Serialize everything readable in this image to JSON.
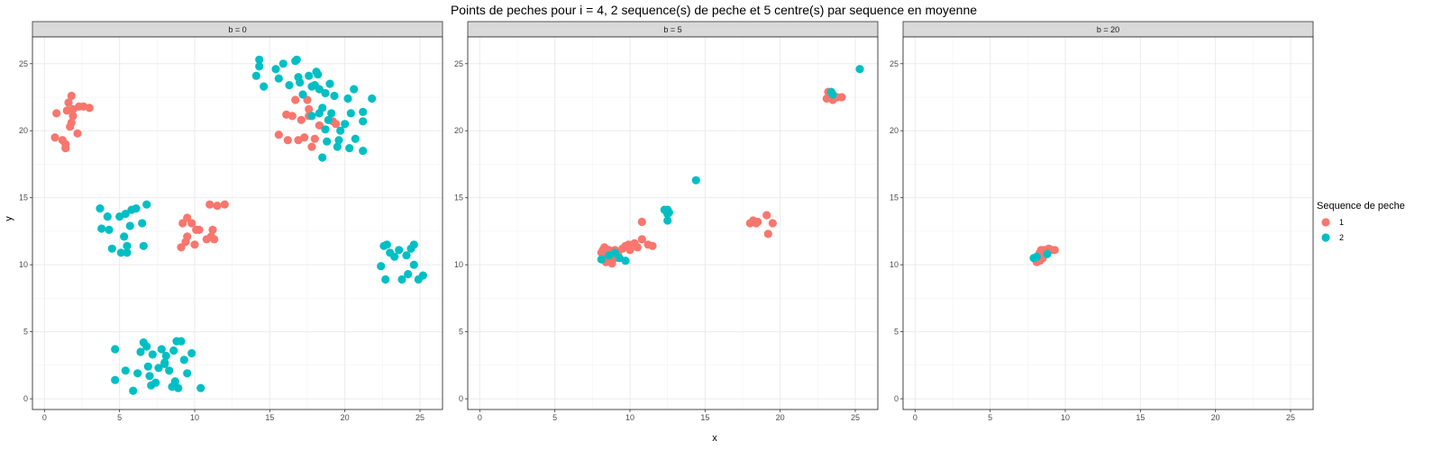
{
  "chart_data": {
    "type": "scatter",
    "title": "Points de peches pour i = 4, 2 sequence(s) de peche et 5 centre(s) par sequence en moyenne",
    "xlabel": "x",
    "ylabel": "y",
    "xlim": [
      -0.8,
      26.5
    ],
    "ylim": [
      -0.8,
      27
    ],
    "xticks": [
      0,
      5,
      10,
      15,
      20,
      25
    ],
    "yticks": [
      0,
      5,
      10,
      15,
      20,
      25
    ],
    "grid": true,
    "legend": {
      "title": "Sequence de peche",
      "placement": "right",
      "entries": [
        {
          "label": "1",
          "color": "#F8766D"
        },
        {
          "label": "2",
          "color": "#00BFC4"
        }
      ]
    },
    "panels": [
      {
        "strip": "b = 0",
        "series": [
          {
            "name": "1",
            "color": "#F8766D",
            "points": [
              [
                0.7,
                19.5
              ],
              [
                0.8,
                21.3
              ],
              [
                1.2,
                19.3
              ],
              [
                1.4,
                19
              ],
              [
                1.4,
                18.7
              ],
              [
                1.5,
                21.5
              ],
              [
                1.6,
                22.1
              ],
              [
                1.7,
                20.3
              ],
              [
                1.8,
                20.6
              ],
              [
                1.8,
                22.6
              ],
              [
                1.9,
                21.1
              ],
              [
                1.9,
                21.6
              ],
              [
                2.2,
                19.8
              ],
              [
                2.3,
                21.8
              ],
              [
                2.6,
                21.8
              ],
              [
                3,
                21.7
              ],
              [
                9.1,
                11.3
              ],
              [
                9.2,
                13.1
              ],
              [
                9.4,
                11.7
              ],
              [
                9.5,
                12.1
              ],
              [
                9.5,
                13.5
              ],
              [
                9.8,
                13.1
              ],
              [
                10,
                11.5
              ],
              [
                10.1,
                12.6
              ],
              [
                10.3,
                12.6
              ],
              [
                10.8,
                11.9
              ],
              [
                11,
                14.5
              ],
              [
                11.1,
                12.1
              ],
              [
                11.2,
                12.6
              ],
              [
                11.3,
                11.9
              ],
              [
                11.5,
                14.4
              ],
              [
                12,
                14.5
              ],
              [
                15.6,
                19.7
              ],
              [
                16.1,
                21.2
              ],
              [
                16.2,
                19.3
              ],
              [
                16.5,
                21.1
              ],
              [
                16.7,
                22.3
              ],
              [
                16.9,
                19.3
              ],
              [
                17.1,
                20.8
              ],
              [
                17.3,
                19.5
              ],
              [
                17.5,
                22.3
              ],
              [
                17.6,
                21.1
              ],
              [
                17.8,
                18.8
              ],
              [
                18,
                19.4
              ],
              [
                18.3,
                20.4
              ],
              [
                19.2,
                20.7
              ],
              [
                19.4,
                20.5
              ],
              [
                17.6,
                21.6
              ]
            ]
          },
          {
            "name": "2",
            "color": "#00BFC4",
            "points": [
              [
                3.7,
                14.2
              ],
              [
                3.8,
                12.7
              ],
              [
                4.2,
                13.6
              ],
              [
                4.3,
                12.6
              ],
              [
                4.5,
                11.2
              ],
              [
                5,
                13.6
              ],
              [
                5.1,
                10.9
              ],
              [
                5.3,
                12.1
              ],
              [
                5.4,
                13.8
              ],
              [
                5.5,
                11.4
              ],
              [
                5.5,
                10.9
              ],
              [
                5.7,
                12.9
              ],
              [
                5.8,
                14.1
              ],
              [
                6.1,
                14.2
              ],
              [
                6.5,
                13.1
              ],
              [
                6.6,
                11.4
              ],
              [
                6.8,
                14.5
              ],
              [
                14.1,
                24.1
              ],
              [
                14.3,
                25.3
              ],
              [
                14.3,
                24.8
              ],
              [
                14.6,
                23.3
              ],
              [
                15.4,
                24.6
              ],
              [
                15.6,
                23.9
              ],
              [
                15.9,
                25
              ],
              [
                16.3,
                23.4
              ],
              [
                16.7,
                25.2
              ],
              [
                16.8,
                25.3
              ],
              [
                16.9,
                24
              ],
              [
                17,
                23.6
              ],
              [
                17.2,
                22.7
              ],
              [
                17.6,
                24.1
              ],
              [
                17.8,
                23.3
              ],
              [
                18,
                23.4
              ],
              [
                18.1,
                24.4
              ],
              [
                18.2,
                24.2
              ],
              [
                18.3,
                23.1
              ],
              [
                18.3,
                21.3
              ],
              [
                18.5,
                21.7
              ],
              [
                18.7,
                22.8
              ],
              [
                19,
                23.5
              ],
              [
                19.3,
                22.6
              ],
              [
                19.1,
                21.3
              ],
              [
                18.9,
                20.8
              ],
              [
                18.8,
                19.2
              ],
              [
                18.5,
                18
              ],
              [
                19.5,
                18.8
              ],
              [
                19.6,
                19.3
              ],
              [
                20,
                20.5
              ],
              [
                20.2,
                22.4
              ],
              [
                20.6,
                23.1
              ],
              [
                20.4,
                21.3
              ],
              [
                20.7,
                19.4
              ],
              [
                20.3,
                18.7
              ],
              [
                21.2,
                21.4
              ],
              [
                21.2,
                20.7
              ],
              [
                21.2,
                18.5
              ],
              [
                21.8,
                22.4
              ],
              [
                17.8,
                21.1
              ],
              [
                18.7,
                20.1
              ],
              [
                19.7,
                20
              ],
              [
                4.7,
                3.7
              ],
              [
                4.7,
                1.4
              ],
              [
                5.4,
                2.1
              ],
              [
                5.9,
                0.6
              ],
              [
                6.2,
                1.9
              ],
              [
                6.4,
                3.5
              ],
              [
                6.6,
                4.2
              ],
              [
                6.8,
                3.9
              ],
              [
                6.9,
                2.4
              ],
              [
                7.1,
                1
              ],
              [
                7.2,
                3.3
              ],
              [
                7.4,
                1.2
              ],
              [
                7.6,
                2.3
              ],
              [
                7.8,
                3.7
              ],
              [
                8,
                2.6
              ],
              [
                8.1,
                3.2
              ],
              [
                8.3,
                2.1
              ],
              [
                8.5,
                0.9
              ],
              [
                8.6,
                3.6
              ],
              [
                8.7,
                1.3
              ],
              [
                8.8,
                4.3
              ],
              [
                8.9,
                0.8
              ],
              [
                9.1,
                4.3
              ],
              [
                9.3,
                2.9
              ],
              [
                9.5,
                1.9
              ],
              [
                9.8,
                3.4
              ],
              [
                10.4,
                0.8
              ],
              [
                8,
                2.7
              ],
              [
                7,
                1.7
              ],
              [
                22.4,
                9.9
              ],
              [
                22.6,
                11.4
              ],
              [
                22.8,
                11.5
              ],
              [
                22.7,
                8.9
              ],
              [
                23,
                10.9
              ],
              [
                23.3,
                10.6
              ],
              [
                23.6,
                11.1
              ],
              [
                23.8,
                8.9
              ],
              [
                24.1,
                10.7
              ],
              [
                24.2,
                9.3
              ],
              [
                24.4,
                11.2
              ],
              [
                24.6,
                10
              ],
              [
                24.6,
                11.5
              ],
              [
                24.9,
                8.9
              ],
              [
                25.2,
                9.2
              ]
            ]
          }
        ]
      },
      {
        "strip": "b = 5",
        "series": [
          {
            "name": "1",
            "color": "#F8766D",
            "points": [
              [
                8.1,
                10.9
              ],
              [
                8.2,
                11.1
              ],
              [
                8.3,
                11.3
              ],
              [
                8.3,
                10.6
              ],
              [
                8.4,
                10.2
              ],
              [
                8.6,
                10.4
              ],
              [
                8.6,
                11.1
              ],
              [
                8.8,
                10.1
              ],
              [
                8.8,
                10.8
              ],
              [
                9,
                11.1
              ],
              [
                9,
                10.5
              ],
              [
                9.2,
                10.8
              ],
              [
                9.5,
                11.2
              ],
              [
                9.7,
                11.4
              ],
              [
                9.9,
                11.5
              ],
              [
                10,
                11.1
              ],
              [
                10.3,
                11.6
              ],
              [
                10.5,
                11.3
              ],
              [
                10.8,
                11.9
              ],
              [
                10.8,
                13.2
              ],
              [
                11.2,
                11.5
              ],
              [
                11.5,
                11.4
              ],
              [
                18,
                13.1
              ],
              [
                18.2,
                13.3
              ],
              [
                18.4,
                13.1
              ],
              [
                18.5,
                13.2
              ],
              [
                19.1,
                13.7
              ],
              [
                19.2,
                12.3
              ],
              [
                19.5,
                13.1
              ],
              [
                23.1,
                22.4
              ],
              [
                23.2,
                22.9
              ],
              [
                23.5,
                22.3
              ],
              [
                23.8,
                22.5
              ],
              [
                24.1,
                22.5
              ],
              [
                23.4,
                22.6
              ]
            ]
          },
          {
            "name": "2",
            "color": "#00BFC4",
            "points": [
              [
                8.1,
                10.4
              ],
              [
                8.6,
                10.7
              ],
              [
                9,
                10.9
              ],
              [
                9.3,
                10.5
              ],
              [
                9.7,
                10.3
              ],
              [
                12.3,
                14.1
              ],
              [
                12.5,
                14.1
              ],
              [
                12.5,
                13.8
              ],
              [
                12.5,
                13.3
              ],
              [
                12.6,
                13.9
              ],
              [
                14.4,
                16.3
              ],
              [
                23.4,
                22.9
              ],
              [
                23.5,
                22.7
              ],
              [
                25.3,
                24.6
              ]
            ]
          }
        ]
      },
      {
        "strip": "b = 20",
        "series": [
          {
            "name": "1",
            "color": "#F8766D",
            "points": [
              [
                8.1,
                10.2
              ],
              [
                8.2,
                10.6
              ],
              [
                8.3,
                10.9
              ],
              [
                8.4,
                11.1
              ],
              [
                8.5,
                10.5
              ],
              [
                8.6,
                11.1
              ],
              [
                8.7,
                11
              ],
              [
                8.9,
                11.2
              ],
              [
                9.1,
                11.1
              ],
              [
                9.3,
                11.1
              ],
              [
                8.3,
                10.3
              ],
              [
                8.6,
                10.8
              ]
            ]
          },
          {
            "name": "2",
            "color": "#00BFC4",
            "points": [
              [
                7.9,
                10.5
              ],
              [
                8.1,
                10.6
              ],
              [
                8.8,
                10.8
              ]
            ]
          }
        ]
      }
    ]
  }
}
